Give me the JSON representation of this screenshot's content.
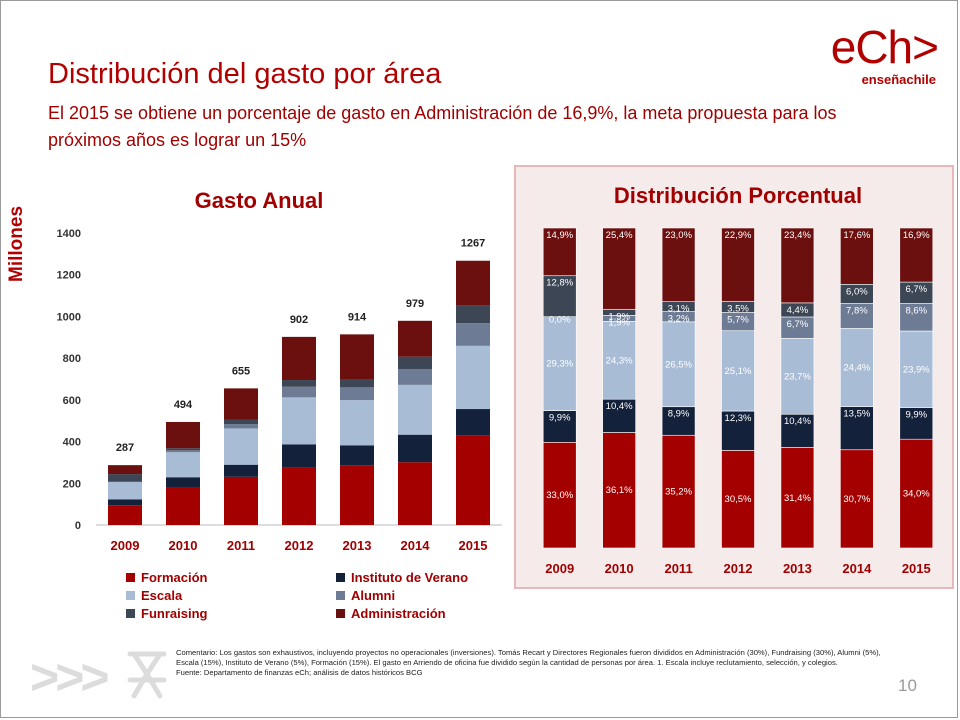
{
  "slide": {
    "title": "Distribución del gasto por área",
    "subtitle": "El 2015 se obtiene un porcentaje de gasto en Administración de 16,9%, la meta propuesta para los próximos años es lograr un 15%",
    "logo_main": "eCh>",
    "logo_sub": "enseñachile",
    "y_axis_unit": "Millones",
    "page_number": "10",
    "decor_chevrons": ">>>",
    "footnote": "Comentario: Los gastos son exhaustivos, incluyendo proyectos no operacionales (inversiones). Tomás Recart y Directores Regionales fueron divididos en Administración (30%), Fundraising (30%), Alumni (5%), Escala (15%), Instituto de Verano (5%), Formación (15%). El gasto en Arriendo de oficina fue dividido según la cantidad de personas por área.    1. Escala incluye reclutamiento, selección, y colegios.",
    "source": "Fuente: Departamento de finanzas eCh; análisis de datos históricos BCG"
  },
  "colors": {
    "Formación": "#a50000",
    "Instituto de Verano": "#14213a",
    "Escala": "#a9bcd6",
    "Alumni": "#6d7b94",
    "Funraising": "#3c4654",
    "Administración": "#6b0f0f"
  },
  "legend": [
    {
      "name": "Formación",
      "color": "#a50000"
    },
    {
      "name": "Instituto de Verano",
      "color": "#14213a"
    },
    {
      "name": "Escala",
      "color": "#a9bcd6"
    },
    {
      "name": "Alumni",
      "color": "#6d7b94"
    },
    {
      "name": "Funraising",
      "color": "#3c4654"
    },
    {
      "name": "Administración",
      "color": "#6b0f0f"
    }
  ],
  "chart_data": [
    {
      "type": "bar",
      "stacked": true,
      "title": "Gasto Anual",
      "ylabel": "Millones",
      "ylim": [
        0,
        1400
      ],
      "yticks": [
        0,
        200,
        400,
        600,
        800,
        1000,
        1200,
        1400
      ],
      "categories": [
        "2009",
        "2010",
        "2011",
        "2012",
        "2013",
        "2014",
        "2015"
      ],
      "totals": [
        287,
        494,
        655,
        902,
        914,
        979,
        1267
      ],
      "series": [
        {
          "name": "Formación",
          "values": [
            95,
            178,
            231,
            275,
            287,
            301,
            431
          ]
        },
        {
          "name": "Instituto de Verano",
          "values": [
            28,
            51,
            58,
            111,
            95,
            132,
            125
          ]
        },
        {
          "name": "Escala",
          "values": [
            84,
            120,
            174,
            226,
            217,
            239,
            303
          ]
        },
        {
          "name": "Alumni",
          "values": [
            0,
            9,
            21,
            51,
            61,
            76,
            109
          ]
        },
        {
          "name": "Funraising",
          "values": [
            37,
            10,
            20,
            32,
            40,
            59,
            85
          ]
        },
        {
          "name": "Administración",
          "values": [
            43,
            126,
            151,
            207,
            214,
            172,
            214
          ]
        }
      ]
    },
    {
      "type": "bar",
      "stacked": true,
      "percent": true,
      "title": "Distribución Porcentual",
      "categories": [
        "2009",
        "2010",
        "2011",
        "2012",
        "2013",
        "2014",
        "2015"
      ],
      "series": [
        {
          "name": "Formación",
          "values": [
            33.0,
            36.1,
            35.2,
            30.5,
            31.4,
            30.7,
            34.0
          ],
          "labels": [
            "33,0%",
            "36,1%",
            "35,2%",
            "30,5%",
            "31,4%",
            "30,7%",
            "34,0%"
          ]
        },
        {
          "name": "Instituto de Verano",
          "values": [
            9.9,
            10.4,
            8.9,
            12.3,
            10.4,
            13.5,
            9.9
          ],
          "labels": [
            "9,9%",
            "10,4%",
            "8,9%",
            "12,3%",
            "10,4%",
            "13,5%",
            "9,9%"
          ]
        },
        {
          "name": "Escala",
          "values": [
            29.3,
            24.3,
            26.5,
            25.1,
            23.7,
            24.4,
            23.9
          ],
          "labels": [
            "29,3%",
            "24,3%",
            "26,5%",
            "25,1%",
            "23,7%",
            "24,4%",
            "23,9%"
          ]
        },
        {
          "name": "Alumni",
          "values": [
            0.0,
            1.9,
            3.2,
            5.7,
            6.7,
            7.8,
            8.6
          ],
          "labels": [
            "0,0%",
            "1,9%",
            "3,2%",
            "5,7%",
            "6,7%",
            "7,8%",
            "8,6%"
          ]
        },
        {
          "name": "Funraising",
          "values": [
            12.8,
            1.9,
            3.1,
            3.5,
            4.4,
            6.0,
            6.7
          ],
          "labels": [
            "12,8%",
            "1,9%",
            "3,1%",
            "3,5%",
            "4,4%",
            "6,0%",
            "6,7%"
          ]
        },
        {
          "name": "Administración",
          "values": [
            14.9,
            25.4,
            23.0,
            22.9,
            23.4,
            17.6,
            16.9
          ],
          "labels": [
            "14,9%",
            "25,4%",
            "23,0%",
            "22,9%",
            "23,4%",
            "17,6%",
            "16,9%"
          ]
        }
      ]
    }
  ]
}
